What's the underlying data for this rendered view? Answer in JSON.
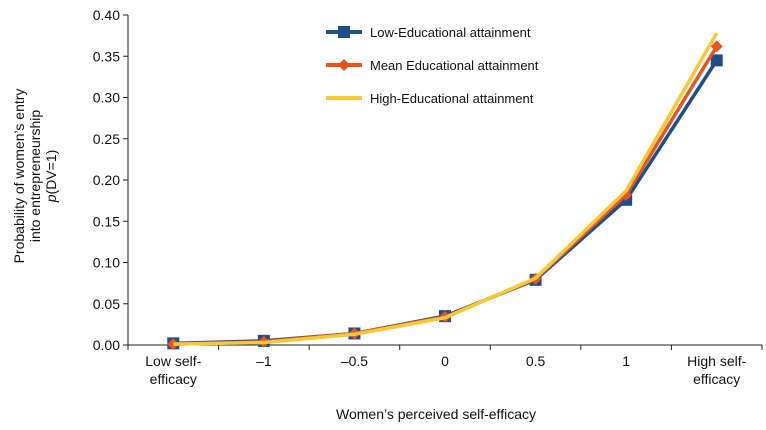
{
  "chart_data": {
    "type": "line",
    "title": "",
    "xlabel": "Women’s perceived self-efficacy",
    "ylabel_lines": [
      "Probability of women’s entry",
      "into entrepreneurship"
    ],
    "ylabel_math_italic": "p",
    "ylabel_math_rest": "(DV=1)",
    "categories": [
      [
        "Low self-",
        "efficacy"
      ],
      [
        "–1"
      ],
      [
        "–0.5"
      ],
      [
        "0"
      ],
      [
        "0.5"
      ],
      [
        "1"
      ],
      [
        "High self-",
        "efficacy"
      ]
    ],
    "ylim": [
      0,
      0.4
    ],
    "yticks": [
      "0.00",
      "0.05",
      "0.10",
      "0.15",
      "0.20",
      "0.25",
      "0.30",
      "0.35",
      "0.40"
    ],
    "legend_position": "top-center",
    "grid": false,
    "series": [
      {
        "name": "Low-Educational attainment",
        "color": "#1f4e8c",
        "marker": "square",
        "values": [
          0.002,
          0.005,
          0.014,
          0.035,
          0.079,
          0.176,
          0.345
        ]
      },
      {
        "name": "Mean Educational attainment",
        "color": "#e8541e",
        "marker": "diamond",
        "values": [
          0.001,
          0.004,
          0.014,
          0.034,
          0.08,
          0.182,
          0.362
        ]
      },
      {
        "name": "High-Educational attainment",
        "color": "#f7c936",
        "marker": "none",
        "values": [
          0.001,
          0.003,
          0.013,
          0.033,
          0.081,
          0.187,
          0.378
        ]
      }
    ]
  }
}
